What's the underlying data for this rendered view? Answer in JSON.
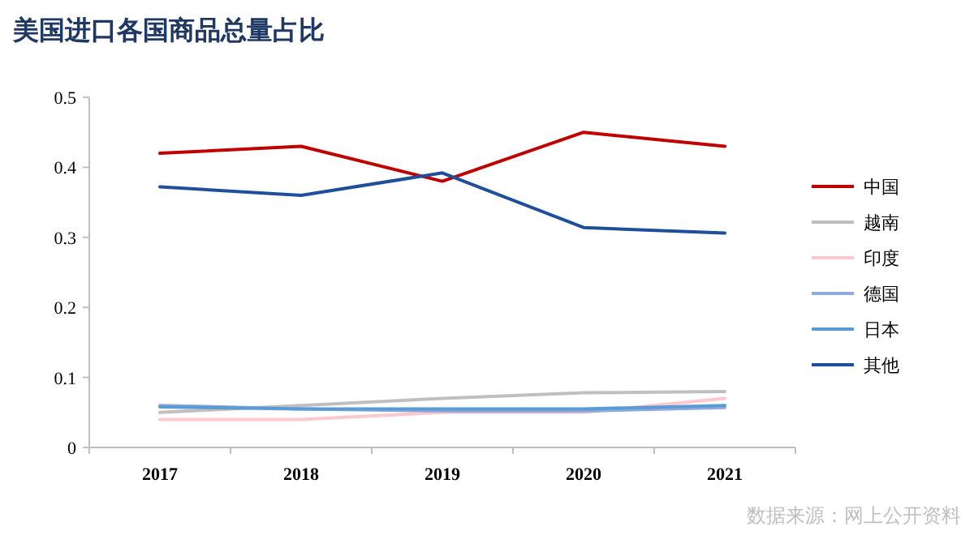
{
  "chart_data": {
    "type": "line",
    "title": "美国进口各国商品总量占比",
    "categories": [
      "2017",
      "2018",
      "2019",
      "2020",
      "2021"
    ],
    "series": [
      {
        "name": "中国",
        "color": "#c00000",
        "values": [
          0.42,
          0.43,
          0.38,
          0.45,
          0.43
        ]
      },
      {
        "name": "越南",
        "color": "#bfbfbf",
        "values": [
          0.05,
          0.06,
          0.07,
          0.078,
          0.08
        ]
      },
      {
        "name": "印度",
        "color": "#ffc7ce",
        "values": [
          0.04,
          0.04,
          0.05,
          0.05,
          0.07
        ]
      },
      {
        "name": "德国",
        "color": "#8eaadb",
        "values": [
          0.06,
          0.055,
          0.052,
          0.052,
          0.057
        ]
      },
      {
        "name": "日本",
        "color": "#5b9bd5",
        "values": [
          0.058,
          0.055,
          0.055,
          0.055,
          0.06
        ]
      },
      {
        "name": "其他",
        "color": "#1f4e9a",
        "values": [
          0.372,
          0.36,
          0.392,
          0.314,
          0.306
        ]
      }
    ],
    "ylim": [
      0,
      0.5
    ],
    "yticks": [
      0,
      0.1,
      0.2,
      0.3,
      0.4,
      0.5
    ],
    "grid": false,
    "legend": "right",
    "marker": "none",
    "line_style": "solid",
    "annotations": [
      "数据来源：网上公开资料"
    ]
  }
}
